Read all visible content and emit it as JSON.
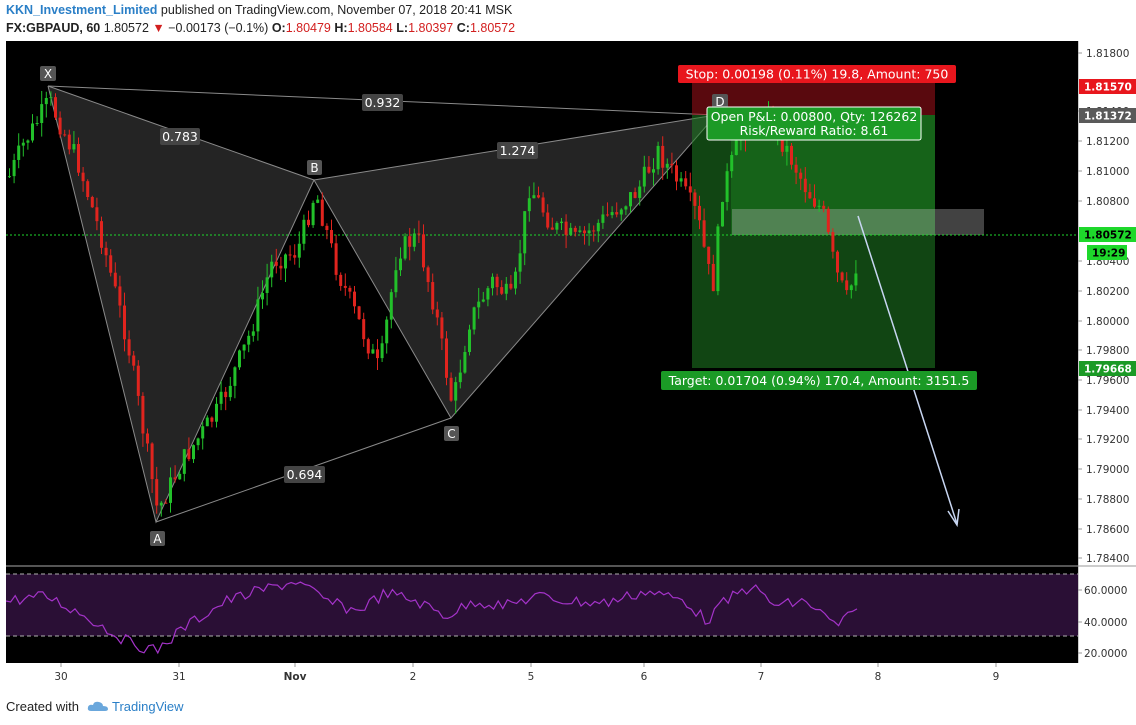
{
  "header": {
    "author": "KKN_Investment_Limited",
    "published_text": "published on TradingView.com, November 07, 2018 20:41 MSK"
  },
  "symbol_bar": {
    "symbol": "FX:GBPAUD, 60",
    "last": "1.80572",
    "arrow": "▼",
    "change": "−0.00173 (−0.1%)",
    "o_label": "O:",
    "o_value": "1.80479",
    "h_label": "H:",
    "h_value": "1.80584",
    "l_label": "L:",
    "l_value": "1.80397",
    "c_label": "C:",
    "c_value": "1.80572"
  },
  "colors": {
    "up": "#22c02a",
    "down": "#e0241e",
    "background": "#000000",
    "pattern_fill": "#2a2a2a",
    "rsi_band": "#2a0f35",
    "rsi_line": "#a433c9",
    "stop_red": "#e8161d",
    "target_green": "#1b9a26",
    "arrow": "#c8d6f2"
  },
  "pattern": {
    "points": [
      "X",
      "A",
      "B",
      "C",
      "D"
    ],
    "ratios": [
      "0.783",
      "0.932",
      "1.274",
      "0.694"
    ]
  },
  "position": {
    "stop": "Stop: 0.00198 (0.11%) 19.8, Amount: 750",
    "pnl": "Open P&L: 0.00800, Qty: 126262",
    "rr": "Risk/Reward Ratio: 8.61",
    "target": "Target: 0.01704 (0.94%) 170.4, Amount: 3151.5"
  },
  "price_axis": {
    "ticks": [
      "1.81800",
      "1.81400",
      "1.81200",
      "1.81000",
      "1.80800",
      "1.80400",
      "1.80200",
      "1.80000",
      "1.79800",
      "1.79600",
      "1.79400",
      "1.79200",
      "1.79000",
      "1.78800",
      "1.78600",
      "1.78400"
    ],
    "tags": {
      "stop": "1.81570",
      "entry": "1.81372",
      "current": "1.80572",
      "countdown": "19:29",
      "target": "1.79668"
    }
  },
  "rsi_axis": {
    "ticks": [
      "60.0000",
      "40.0000",
      "20.0000"
    ]
  },
  "time_axis": {
    "labels": [
      "30",
      "31",
      "Nov",
      "2",
      "5",
      "6",
      "7",
      "8",
      "9"
    ]
  },
  "footer": {
    "created_with": "Created with",
    "brand": "TradingView"
  }
}
